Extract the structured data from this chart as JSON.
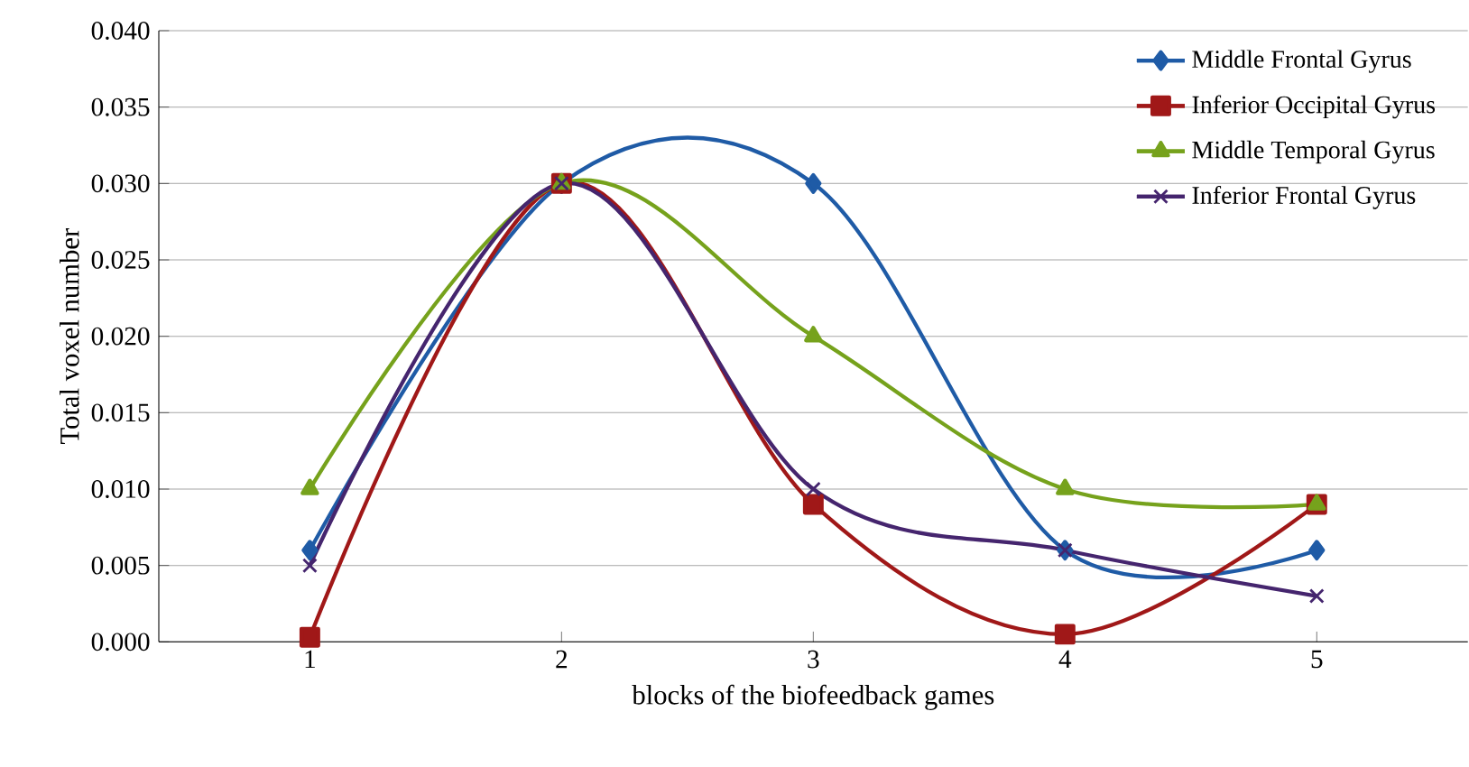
{
  "chart_data": {
    "type": "line",
    "xlabel": "blocks of the biofeedback games",
    "ylabel": "Total voxel number",
    "categories": [
      "1",
      "2",
      "3",
      "4",
      "5"
    ],
    "series": [
      {
        "name": "Middle Frontal Gyrus",
        "color": "#1f5ba6",
        "marker": "diamond",
        "values": [
          0.006,
          0.03,
          0.03,
          0.006,
          0.006
        ]
      },
      {
        "name": "Inferior Occipital Gyrus",
        "color": "#a01818",
        "marker": "square",
        "values": [
          0.0003,
          0.03,
          0.009,
          0.0005,
          0.009
        ]
      },
      {
        "name": "Middle Temporal Gyrus",
        "color": "#76a21c",
        "marker": "triangle",
        "values": [
          0.01,
          0.03,
          0.02,
          0.01,
          0.009
        ]
      },
      {
        "name": "Inferior Frontal Gyrus",
        "color": "#45256e",
        "marker": "cross",
        "values": [
          0.005,
          0.03,
          0.01,
          0.006,
          0.003
        ]
      }
    ],
    "ylim": [
      0,
      0.04
    ],
    "yticks": [
      {
        "value": 0,
        "label": "0.000"
      },
      {
        "value": 0.005,
        "label": "0.005"
      },
      {
        "value": 0.01,
        "label": "0.010"
      },
      {
        "value": 0.015,
        "label": "0.015"
      },
      {
        "value": 0.02,
        "label": "0.020"
      },
      {
        "value": 0.025,
        "label": "0.025"
      },
      {
        "value": 0.03,
        "label": "0.030"
      },
      {
        "value": 0.035,
        "label": "0.035"
      },
      {
        "value": 0.04,
        "label": "0.040"
      }
    ],
    "grid": "y",
    "legend": "top right",
    "line_style": "solid"
  }
}
